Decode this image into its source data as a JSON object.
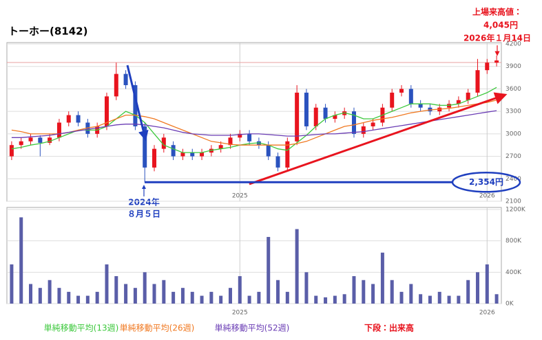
{
  "title": "トーホー(8142)",
  "chart_data": {
    "type": "candlestick",
    "categories": [
      null,
      null,
      null,
      null,
      null,
      null,
      null,
      null,
      null,
      null,
      null,
      null,
      null,
      null,
      null,
      null,
      null,
      null,
      null,
      null,
      null,
      null,
      null,
      null,
      "2025",
      null,
      null,
      null,
      null,
      null,
      null,
      null,
      null,
      null,
      null,
      null,
      null,
      null,
      null,
      null,
      null,
      null,
      null,
      null,
      null,
      null,
      null,
      null,
      null,
      null,
      "2026",
      null
    ],
    "open": [
      2700,
      2850,
      2900,
      2950,
      2880,
      2950,
      3150,
      3250,
      3150,
      3000,
      3100,
      3500,
      3800,
      3650,
      3100,
      2550,
      2800,
      2850,
      2700,
      2750,
      2700,
      2750,
      2800,
      2850,
      2950,
      3000,
      2900,
      2850,
      2700,
      2550,
      2900,
      3550,
      3100,
      3350,
      3200,
      3250,
      3300,
      3000,
      3100,
      3150,
      3350,
      3550,
      3600,
      3400,
      3350,
      3300,
      3350,
      3400,
      3450,
      3550,
      3850,
      3950
    ],
    "high": [
      2900,
      2950,
      3000,
      2980,
      3000,
      3200,
      3300,
      3300,
      3200,
      3150,
      3550,
      3950,
      3850,
      3700,
      3150,
      2850,
      3000,
      2900,
      2800,
      2800,
      2800,
      2850,
      2900,
      3000,
      3050,
      3050,
      2950,
      2900,
      2750,
      2950,
      3650,
      3600,
      3400,
      3400,
      3300,
      3350,
      3350,
      3150,
      3200,
      3400,
      3600,
      3650,
      3650,
      3450,
      3400,
      3400,
      3450,
      3500,
      3600,
      4000,
      4000,
      4045
    ],
    "low": [
      2650,
      2800,
      2850,
      2700,
      2850,
      2900,
      3100,
      3100,
      2950,
      2950,
      3050,
      3450,
      3600,
      3050,
      2354,
      2500,
      2750,
      2650,
      2650,
      2650,
      2650,
      2700,
      2750,
      2800,
      2900,
      2850,
      2800,
      2650,
      2500,
      2500,
      2850,
      3050,
      3050,
      3150,
      3150,
      3200,
      2950,
      2950,
      3050,
      3100,
      3300,
      3500,
      3350,
      3300,
      3250,
      3250,
      3300,
      3350,
      3400,
      3500,
      3800,
      3900
    ],
    "close": [
      2850,
      2900,
      2950,
      2880,
      2950,
      3150,
      3250,
      3150,
      3000,
      3100,
      3500,
      3800,
      3650,
      3100,
      2550,
      2800,
      2950,
      2700,
      2750,
      2700,
      2750,
      2800,
      2850,
      2950,
      3000,
      2900,
      2850,
      2700,
      2550,
      2900,
      3550,
      3100,
      3350,
      3200,
      3250,
      3300,
      3000,
      3100,
      3150,
      3350,
      3550,
      3600,
      3400,
      3350,
      3300,
      3350,
      3400,
      3450,
      3550,
      3850,
      3950,
      3980
    ],
    "up_color": "#e8141e",
    "down_color": "#2a52be",
    "ylim": [
      2100,
      4200
    ],
    "yticks": [
      2100,
      2400,
      2700,
      3000,
      3300,
      3600,
      3900,
      4200
    ],
    "grid": true,
    "series": [
      {
        "name": "単純移動平均(13週)",
        "color": "#3cc83c",
        "values": [
          2800,
          2820,
          2850,
          2870,
          2900,
          2950,
          3000,
          3050,
          3050,
          3050,
          3100,
          3200,
          3300,
          3250,
          3150,
          3000,
          2850,
          2800,
          2750,
          2750,
          2750,
          2780,
          2800,
          2820,
          2850,
          2870,
          2880,
          2850,
          2800,
          2780,
          2880,
          2980,
          3100,
          3200,
          3250,
          3280,
          3250,
          3200,
          3200,
          3250,
          3300,
          3350,
          3400,
          3400,
          3400,
          3380,
          3380,
          3400,
          3450,
          3500,
          3550,
          3620
        ]
      },
      {
        "name": "単純移動平均(26週)",
        "color": "#f07820",
        "values": [
          3050,
          3030,
          3000,
          3000,
          3000,
          3000,
          3020,
          3050,
          3080,
          3100,
          3150,
          3200,
          3250,
          3250,
          3230,
          3200,
          3150,
          3100,
          3050,
          3000,
          2950,
          2900,
          2880,
          2860,
          2850,
          2850,
          2850,
          2850,
          2850,
          2850,
          2870,
          2900,
          2950,
          3000,
          3050,
          3100,
          3120,
          3150,
          3180,
          3200,
          3220,
          3250,
          3280,
          3300,
          3320,
          3330,
          3340,
          3360,
          3380,
          3400,
          3420,
          3450
        ]
      },
      {
        "name": "単純移動平均(52週)",
        "color": "#6a3cb4",
        "values": [
          2950,
          2950,
          2960,
          2970,
          2980,
          3000,
          3020,
          3040,
          3060,
          3080,
          3100,
          3120,
          3130,
          3130,
          3120,
          3100,
          3080,
          3050,
          3020,
          3000,
          2990,
          2980,
          2980,
          2980,
          2990,
          3000,
          3000,
          2990,
          2980,
          2970,
          2970,
          2980,
          2990,
          3000,
          3000,
          3010,
          3020,
          3030,
          3050,
          3070,
          3090,
          3110,
          3130,
          3150,
          3170,
          3190,
          3210,
          3230,
          3250,
          3270,
          3290,
          3310
        ]
      }
    ],
    "volume": {
      "label": "下段：出来高",
      "color": "#5a5ea8",
      "values": [
        500000,
        1100000,
        250000,
        200000,
        300000,
        200000,
        150000,
        100000,
        100000,
        150000,
        500000,
        350000,
        250000,
        200000,
        400000,
        250000,
        300000,
        150000,
        200000,
        150000,
        100000,
        150000,
        100000,
        200000,
        350000,
        100000,
        150000,
        850000,
        300000,
        150000,
        950000,
        400000,
        100000,
        80000,
        100000,
        120000,
        350000,
        300000,
        250000,
        650000,
        300000,
        150000,
        250000,
        120000,
        100000,
        150000,
        100000,
        100000,
        300000,
        400000,
        500000,
        120000
      ],
      "ylim": [
        0,
        1200000
      ],
      "yticks": [
        {
          "value": 0,
          "label": "0K"
        },
        {
          "value": 400000,
          "label": "400K"
        },
        {
          "value": 800000,
          "label": "800K"
        },
        {
          "value": 1200000,
          "label": "1200K"
        }
      ]
    },
    "annotations": [
      {
        "text": "上場来高値："
      },
      {
        "text": "4,045円"
      },
      {
        "text": "2026年１月14日"
      },
      {
        "text": "2024年"
      },
      {
        "text": "８月５日"
      },
      {
        "text": "2,354円",
        "value": 2354
      }
    ]
  }
}
